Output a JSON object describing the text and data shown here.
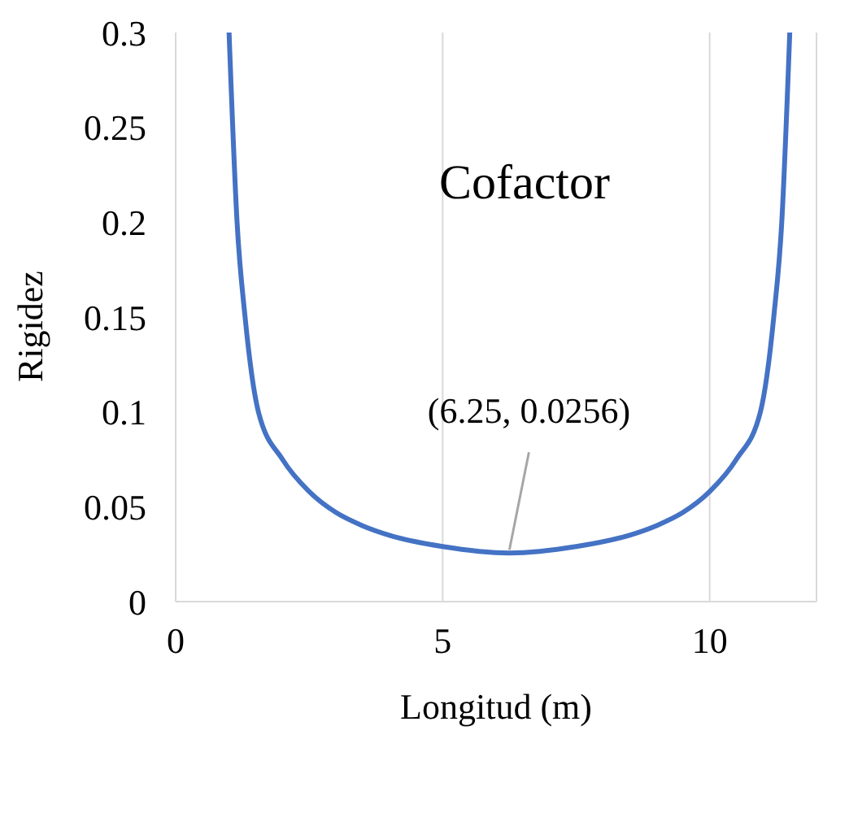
{
  "chart_data": {
    "type": "line",
    "xlabel": "Longitud (m)",
    "ylabel": "Rigidez",
    "annotations": [
      "Cofactor",
      {
        "text": "(6.25, 0.0256)",
        "x": 6.25,
        "y": 0.0256
      }
    ],
    "x": [
      1.0,
      1.15,
      1.3,
      1.55,
      2,
      2.5,
      3,
      3.5,
      4,
      5,
      6.25,
      7.5,
      8.5,
      9,
      9.5,
      10,
      10.5,
      10.95,
      11.2,
      11.35,
      11.5
    ],
    "series": [
      {
        "color": "#4472c4",
        "values": [
          0.3,
          0.2,
          0.15,
          0.1,
          0.075,
          0.058,
          0.047,
          0.04,
          0.035,
          0.029,
          0.0256,
          0.029,
          0.035,
          0.04,
          0.047,
          0.058,
          0.075,
          0.1,
          0.15,
          0.2,
          0.3
        ]
      }
    ],
    "xlim": [
      0,
      12
    ],
    "xticks": [
      0,
      5,
      10
    ],
    "ylim": [
      0,
      0.3
    ],
    "yticks": [
      0,
      0.05,
      0.1,
      0.15,
      0.2,
      0.25,
      0.3
    ],
    "grid": "x",
    "legend": false,
    "marker": "none",
    "line_style": "solid"
  }
}
